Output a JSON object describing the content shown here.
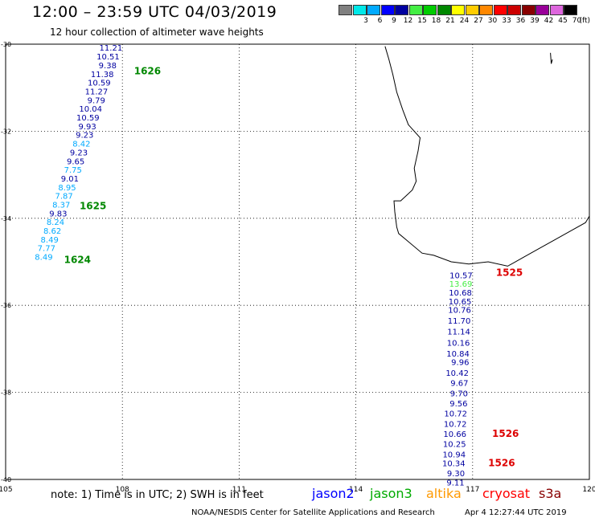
{
  "header": {
    "title": "12:00  –  23:59 UTC 04/03/2019",
    "subtitle": "12 hour collection of altimeter wave heights"
  },
  "legend": {
    "unit": "(ft)",
    "items": [
      {
        "label": "",
        "color": "#808080"
      },
      {
        "label": "3",
        "color": "#00e8e8"
      },
      {
        "label": "6",
        "color": "#00aaff"
      },
      {
        "label": "9",
        "color": "#0000ff"
      },
      {
        "label": "12",
        "color": "#0000a0"
      },
      {
        "label": "15",
        "color": "#44ee44"
      },
      {
        "label": "18",
        "color": "#00cc00"
      },
      {
        "label": "21",
        "color": "#008800"
      },
      {
        "label": "24",
        "color": "#ffff00"
      },
      {
        "label": "27",
        "color": "#ffcc00"
      },
      {
        "label": "30",
        "color": "#ff8800"
      },
      {
        "label": "33",
        "color": "#ff0000"
      },
      {
        "label": "36",
        "color": "#cc0000"
      },
      {
        "label": "39",
        "color": "#880000"
      },
      {
        "label": "42",
        "color": "#990099"
      },
      {
        "label": "45",
        "color": "#dd66dd"
      },
      {
        "label": "70",
        "color": "#000000"
      }
    ]
  },
  "map": {
    "lon_range": [
      105,
      120
    ],
    "lat_range": [
      -40,
      -30
    ],
    "lon_ticks": [
      "105",
      "108",
      "111",
      "114",
      "117",
      "120"
    ],
    "lat_ticks": [
      "-30",
      "-32",
      "-34",
      "-36",
      "-38",
      "-40"
    ],
    "tracks": [
      {
        "satellite": "jason2",
        "points": [
          {
            "lon": 108.0,
            "lat": -30.07,
            "v": "11.21",
            "c": "#0000a0"
          },
          {
            "lon": 107.93,
            "lat": -30.28,
            "v": "10.51",
            "c": "#0000a0"
          },
          {
            "lon": 107.85,
            "lat": -30.48,
            "v": "9.38",
            "c": "#0000a0"
          },
          {
            "lon": 107.78,
            "lat": -30.68,
            "v": "11.38",
            "c": "#0000a0"
          },
          {
            "lon": 107.7,
            "lat": -30.88,
            "v": "10.59",
            "c": "#0000a0"
          },
          {
            "lon": 107.63,
            "lat": -31.08,
            "v": "11.27",
            "c": "#0000a0"
          },
          {
            "lon": 107.56,
            "lat": -31.28,
            "v": "9.79",
            "c": "#0000a0"
          },
          {
            "lon": 107.48,
            "lat": -31.48,
            "v": "10.04",
            "c": "#0000a0"
          },
          {
            "lon": 107.41,
            "lat": -31.68,
            "v": "10.59",
            "c": "#0000a0"
          },
          {
            "lon": 107.33,
            "lat": -31.88,
            "v": "9.93",
            "c": "#0000a0"
          },
          {
            "lon": 107.26,
            "lat": -32.08,
            "v": "9.23",
            "c": "#0000a0"
          },
          {
            "lon": 107.18,
            "lat": -32.28,
            "v": "8.42",
            "c": "#00aaff"
          },
          {
            "lon": 107.11,
            "lat": -32.48,
            "v": "9.23",
            "c": "#0000a0"
          },
          {
            "lon": 107.03,
            "lat": -32.68,
            "v": "9.65",
            "c": "#0000a0"
          },
          {
            "lon": 106.96,
            "lat": -32.88,
            "v": "7.75",
            "c": "#00aaff"
          },
          {
            "lon": 106.88,
            "lat": -33.08,
            "v": "9.01",
            "c": "#0000a0"
          },
          {
            "lon": 106.81,
            "lat": -33.28,
            "v": "8.95",
            "c": "#00aaff"
          },
          {
            "lon": 106.73,
            "lat": -33.48,
            "v": "7.87",
            "c": "#00aaff"
          },
          {
            "lon": 106.66,
            "lat": -33.68,
            "v": "8.37",
            "c": "#00aaff"
          },
          {
            "lon": 106.58,
            "lat": -33.88,
            "v": "9.83",
            "c": "#0000a0"
          },
          {
            "lon": 106.51,
            "lat": -34.08,
            "v": "8.24",
            "c": "#00aaff"
          },
          {
            "lon": 106.43,
            "lat": -34.28,
            "v": "8.62",
            "c": "#00aaff"
          },
          {
            "lon": 106.36,
            "lat": -34.48,
            "v": "8.49",
            "c": "#00aaff"
          },
          {
            "lon": 106.28,
            "lat": -34.68,
            "v": "7.77",
            "c": "#00aaff"
          },
          {
            "lon": 106.21,
            "lat": -34.88,
            "v": "8.49",
            "c": "#00aaff"
          }
        ]
      },
      {
        "satellite": "jason2",
        "points": [
          {
            "lon": 117.0,
            "lat": -35.3,
            "v": "10.57",
            "c": "#0000a0"
          },
          {
            "lon": 116.99,
            "lat": -35.5,
            "v": "13.69",
            "c": "#44ee44"
          },
          {
            "lon": 116.98,
            "lat": -35.7,
            "v": "10.68",
            "c": "#0000a0"
          },
          {
            "lon": 116.97,
            "lat": -35.9,
            "v": "10.65",
            "c": "#0000a0"
          },
          {
            "lon": 116.96,
            "lat": -36.1,
            "v": "10.76",
            "c": "#0000a0"
          },
          {
            "lon": 116.95,
            "lat": -36.35,
            "v": "11.70",
            "c": "#0000a0"
          },
          {
            "lon": 116.94,
            "lat": -36.6,
            "v": "11.14",
            "c": "#0000a0"
          },
          {
            "lon": 116.93,
            "lat": -36.85,
            "v": "10.16",
            "c": "#0000a0"
          },
          {
            "lon": 116.92,
            "lat": -37.1,
            "v": "10.84",
            "c": "#0000a0"
          },
          {
            "lon": 116.91,
            "lat": -37.3,
            "v": "9.96",
            "c": "#0000a0"
          },
          {
            "lon": 116.9,
            "lat": -37.55,
            "v": "10.42",
            "c": "#0000a0"
          },
          {
            "lon": 116.89,
            "lat": -37.78,
            "v": "9.67",
            "c": "#0000a0"
          },
          {
            "lon": 116.88,
            "lat": -38.02,
            "v": "9.70",
            "c": "#0000a0"
          },
          {
            "lon": 116.87,
            "lat": -38.25,
            "v": "9.56",
            "c": "#0000a0"
          },
          {
            "lon": 116.86,
            "lat": -38.48,
            "v": "10.72",
            "c": "#0000a0"
          },
          {
            "lon": 116.85,
            "lat": -38.72,
            "v": "10.72",
            "c": "#0000a0"
          },
          {
            "lon": 116.84,
            "lat": -38.95,
            "v": "10.66",
            "c": "#0000a0"
          },
          {
            "lon": 116.83,
            "lat": -39.18,
            "v": "10.25",
            "c": "#0000a0"
          },
          {
            "lon": 116.82,
            "lat": -39.42,
            "v": "10.94",
            "c": "#0000a0"
          },
          {
            "lon": 116.81,
            "lat": -39.62,
            "v": "10.34",
            "c": "#0000a0"
          },
          {
            "lon": 116.8,
            "lat": -39.85,
            "v": "9.30",
            "c": "#0000a0"
          },
          {
            "lon": 116.79,
            "lat": -40.06,
            "v": "9.11",
            "c": "#0000a0"
          }
        ]
      }
    ],
    "time_labels": [
      {
        "text": "1626",
        "lon": 108.3,
        "lat": -30.62,
        "color": "#008800"
      },
      {
        "text": "1625",
        "lon": 106.9,
        "lat": -33.72,
        "color": "#008800"
      },
      {
        "text": "1624",
        "lon": 106.5,
        "lat": -34.95,
        "color": "#008800"
      },
      {
        "text": "1525",
        "lon": 117.6,
        "lat": -35.25,
        "color": "#dd0000"
      },
      {
        "text": "1526",
        "lon": 117.5,
        "lat": -38.95,
        "color": "#dd0000"
      },
      {
        "text": "1526",
        "lon": 117.4,
        "lat": -39.62,
        "color": "#dd0000"
      }
    ]
  },
  "footer": {
    "note": "note:  1) Time is in UTC;  2) SWH is in feet",
    "satellites": [
      {
        "name": "jason2",
        "color": "#0000ff"
      },
      {
        "name": "jason3",
        "color": "#00aa00"
      },
      {
        "name": "altika",
        "color": "#ff9900"
      },
      {
        "name": "cryosat",
        "color": "#ff0000"
      },
      {
        "name": "s3a",
        "color": "#880000"
      }
    ],
    "credit": "NOAA/NESDIS Center for Satellite Applications and Research",
    "timestamp": "Apr  4 12:27:44 UTC 2019"
  }
}
